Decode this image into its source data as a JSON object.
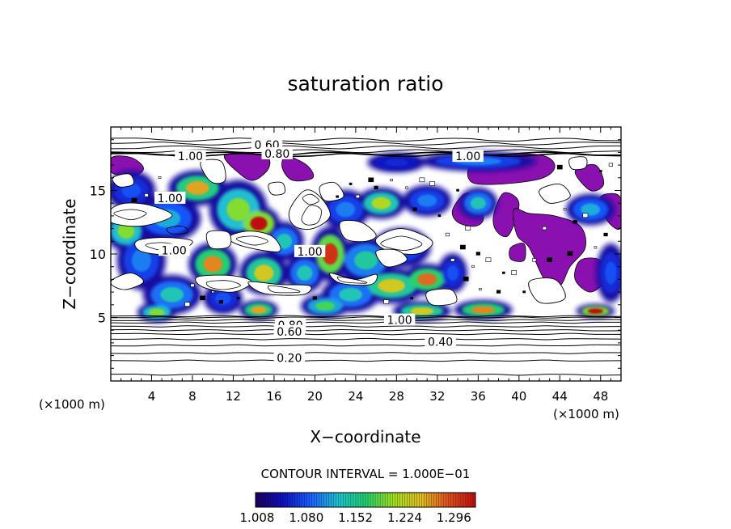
{
  "chart_data": {
    "type": "heatmap",
    "title": "saturation ratio",
    "xlabel": "X−coordinate",
    "ylabel": "Z−coordinate",
    "x_unit_label": "(×1000 m)",
    "y_unit_label": "(×1000 m)",
    "xlim": [
      0,
      50
    ],
    "ylim": [
      0,
      20
    ],
    "x_ticks": [
      4,
      8,
      12,
      16,
      20,
      24,
      28,
      32,
      36,
      40,
      44,
      48
    ],
    "y_ticks": [
      5,
      10,
      15
    ],
    "contour_interval_text": "CONTOUR INTERVAL = 1.000E−01",
    "colorbar": {
      "range": [
        1.008,
        1.33
      ],
      "tick_values": [
        1.008,
        1.08,
        1.152,
        1.224,
        1.296
      ],
      "tick_labels": [
        "1.008",
        "1.080",
        "1.152",
        "1.224",
        "1.296"
      ],
      "colors": [
        "#1e0060",
        "#1010c0",
        "#1a60ff",
        "#20c0d0",
        "#20d070",
        "#a0e020",
        "#e0c020",
        "#e05020",
        "#c01010"
      ]
    },
    "saturated_color": "#8a10b0",
    "contour_labels": [
      {
        "text": "0.60",
        "x": 15.3,
        "z": 18.6
      },
      {
        "text": "1.00",
        "x": 7.8,
        "z": 17.7
      },
      {
        "text": "0.80",
        "x": 16.3,
        "z": 17.9
      },
      {
        "text": "1.00",
        "x": 35.0,
        "z": 17.7
      },
      {
        "text": "1.00",
        "x": 5.8,
        "z": 14.4
      },
      {
        "text": "1.00",
        "x": 6.2,
        "z": 10.3
      },
      {
        "text": "1.00",
        "x": 19.5,
        "z": 10.2
      },
      {
        "text": "1.00",
        "x": 28.3,
        "z": 4.8
      },
      {
        "text": "0.80",
        "x": 17.6,
        "z": 4.4
      },
      {
        "text": "0.60",
        "x": 17.5,
        "z": 3.9
      },
      {
        "text": "0.40",
        "x": 32.3,
        "z": 3.1
      },
      {
        "text": "0.20",
        "x": 17.5,
        "z": 1.8
      }
    ],
    "stratified_contours_z": [
      0.5,
      1.6,
      2.2,
      2.8,
      3.3,
      3.7,
      4.0,
      4.3,
      4.6,
      4.8,
      5.0,
      5.1
    ],
    "upper_contours_z": [
      17.8,
      17.9,
      18.1,
      18.4,
      18.7,
      19.0
    ],
    "moist_cells": [
      {
        "x": 8.5,
        "z": 15.2,
        "sx": 3.0,
        "sz": 0.9,
        "v": 1.26
      },
      {
        "x": 12.5,
        "z": 13.5,
        "sx": 3.0,
        "sz": 1.5,
        "v": 1.2
      },
      {
        "x": 14.5,
        "z": 12.4,
        "sx": 2.2,
        "sz": 0.9,
        "v": 1.33
      },
      {
        "x": 5.5,
        "z": 12.8,
        "sx": 3.5,
        "sz": 1.2,
        "v": 1.12
      },
      {
        "x": 2.0,
        "z": 15.0,
        "sx": 2.5,
        "sz": 1.0,
        "v": 1.08
      },
      {
        "x": 1.5,
        "z": 11.8,
        "sx": 2.2,
        "sz": 1.0,
        "v": 1.2
      },
      {
        "x": 3.0,
        "z": 9.5,
        "sx": 2.5,
        "sz": 1.5,
        "v": 1.1
      },
      {
        "x": 10.0,
        "z": 9.2,
        "sx": 2.5,
        "sz": 1.1,
        "v": 1.27
      },
      {
        "x": 15.0,
        "z": 8.5,
        "sx": 2.5,
        "sz": 1.1,
        "v": 1.24
      },
      {
        "x": 17.0,
        "z": 11.0,
        "sx": 2.0,
        "sz": 1.0,
        "v": 1.14
      },
      {
        "x": 21.5,
        "z": 10.0,
        "sx": 2.0,
        "sz": 1.4,
        "v": 1.31
      },
      {
        "x": 25.0,
        "z": 9.5,
        "sx": 3.0,
        "sz": 1.2,
        "v": 1.15
      },
      {
        "x": 27.5,
        "z": 7.5,
        "sx": 3.5,
        "sz": 0.9,
        "v": 1.24
      },
      {
        "x": 31.0,
        "z": 8.0,
        "sx": 2.5,
        "sz": 0.8,
        "v": 1.28
      },
      {
        "x": 28.5,
        "z": 10.5,
        "sx": 3.0,
        "sz": 1.0,
        "v": 1.1
      },
      {
        "x": 19.0,
        "z": 8.5,
        "sx": 2.0,
        "sz": 1.0,
        "v": 1.14
      },
      {
        "x": 23.5,
        "z": 6.8,
        "sx": 3.0,
        "sz": 0.9,
        "v": 1.14
      },
      {
        "x": 6.0,
        "z": 6.8,
        "sx": 3.0,
        "sz": 1.0,
        "v": 1.14
      },
      {
        "x": 4.5,
        "z": 5.4,
        "sx": 2.0,
        "sz": 0.5,
        "v": 1.2
      },
      {
        "x": 14.5,
        "z": 5.6,
        "sx": 2.0,
        "sz": 0.5,
        "v": 1.26
      },
      {
        "x": 21.0,
        "z": 5.9,
        "sx": 2.5,
        "sz": 0.6,
        "v": 1.18
      },
      {
        "x": 30.5,
        "z": 5.5,
        "sx": 3.0,
        "sz": 0.5,
        "v": 1.24
      },
      {
        "x": 36.5,
        "z": 5.6,
        "sx": 3.0,
        "sz": 0.5,
        "v": 1.27
      },
      {
        "x": 47.5,
        "z": 5.5,
        "sx": 2.0,
        "sz": 0.35,
        "v": 1.33
      },
      {
        "x": 26.5,
        "z": 14.0,
        "sx": 2.5,
        "sz": 0.8,
        "v": 1.22
      },
      {
        "x": 23.0,
        "z": 13.5,
        "sx": 2.5,
        "sz": 1.0,
        "v": 1.1
      },
      {
        "x": 31.0,
        "z": 14.2,
        "sx": 2.5,
        "sz": 0.8,
        "v": 1.1
      },
      {
        "x": 36.0,
        "z": 14.0,
        "sx": 2.0,
        "sz": 0.8,
        "v": 1.14
      },
      {
        "x": 47.0,
        "z": 13.5,
        "sx": 2.5,
        "sz": 0.8,
        "v": 1.12
      },
      {
        "x": 36.0,
        "z": 17.3,
        "sx": 6.0,
        "sz": 0.5,
        "v": 1.1
      },
      {
        "x": 28.0,
        "z": 17.2,
        "sx": 3.0,
        "sz": 0.5,
        "v": 1.06
      },
      {
        "x": 33.5,
        "z": 8.5,
        "sx": 1.5,
        "sz": 1.0,
        "v": 1.08
      },
      {
        "x": 49.0,
        "z": 8.5,
        "sx": 1.5,
        "sz": 1.5,
        "v": 1.08
      },
      {
        "x": 11.0,
        "z": 6.5,
        "sx": 2.0,
        "sz": 0.8,
        "v": 1.08
      }
    ],
    "saturated_regions": [
      [
        [
          0.1,
          17.6
        ],
        [
          2.0,
          17.6
        ],
        [
          3.2,
          16.8
        ],
        [
          2.4,
          16.2
        ],
        [
          0.1,
          16.4
        ]
      ],
      [
        [
          11.2,
          17.8
        ],
        [
          12.5,
          16.4
        ],
        [
          14.0,
          15.8
        ],
        [
          15.5,
          16.8
        ],
        [
          15.0,
          17.8
        ]
      ],
      [
        [
          17.2,
          17.7
        ],
        [
          19.2,
          17.0
        ],
        [
          19.8,
          16.0
        ],
        [
          17.8,
          15.8
        ],
        [
          16.8,
          16.8
        ]
      ],
      [
        [
          35.5,
          15.6
        ],
        [
          41.5,
          15.8
        ],
        [
          43.5,
          16.8
        ],
        [
          42.0,
          17.8
        ],
        [
          36.0,
          17.6
        ]
      ],
      [
        [
          33.5,
          13.5
        ],
        [
          35.0,
          14.8
        ],
        [
          36.5,
          13.0
        ],
        [
          35.8,
          12.2
        ],
        [
          34.0,
          12.5
        ]
      ],
      [
        [
          37.5,
          13.0
        ],
        [
          38.5,
          14.8
        ],
        [
          40.0,
          14.0
        ],
        [
          39.0,
          11.5
        ],
        [
          37.8,
          11.8
        ]
      ],
      [
        [
          39.5,
          13.5
        ],
        [
          41.0,
          13.2
        ],
        [
          43.5,
          13.0
        ],
        [
          46.0,
          12.2
        ],
        [
          46.5,
          10.5
        ],
        [
          45.0,
          9.0
        ],
        [
          44.0,
          7.5
        ],
        [
          42.5,
          8.0
        ],
        [
          41.0,
          10.5
        ],
        [
          39.8,
          11.5
        ]
      ],
      [
        [
          45.5,
          16.5
        ],
        [
          47.0,
          15.0
        ],
        [
          48.3,
          15.5
        ],
        [
          47.5,
          17.0
        ]
      ],
      [
        [
          48.0,
          14.5
        ],
        [
          49.9,
          14.5
        ],
        [
          49.9,
          12.0
        ],
        [
          48.5,
          12.8
        ]
      ],
      [
        [
          39.2,
          10.5
        ],
        [
          40.5,
          10.8
        ],
        [
          40.5,
          9.5
        ],
        [
          39.2,
          9.6
        ]
      ],
      [
        [
          46.0,
          9.5
        ],
        [
          48.0,
          9.5
        ],
        [
          48.5,
          8.0
        ],
        [
          47.0,
          7.0
        ],
        [
          45.5,
          8.0
        ]
      ]
    ],
    "cloud_free_regions": [
      [
        [
          17.5,
          13.4
        ],
        [
          19.0,
          15.0
        ],
        [
          20.5,
          14.5
        ],
        [
          21.5,
          13.0
        ],
        [
          19.8,
          12.0
        ],
        [
          18.0,
          12.2
        ]
      ],
      [
        [
          22.5,
          12.5
        ],
        [
          24.5,
          12.5
        ],
        [
          26.0,
          11.5
        ],
        [
          25.0,
          11.0
        ],
        [
          23.0,
          11.2
        ]
      ],
      [
        [
          26.0,
          11.2
        ],
        [
          28.5,
          12.0
        ],
        [
          31.5,
          11.0
        ],
        [
          30.0,
          10.0
        ],
        [
          27.0,
          10.3
        ]
      ],
      [
        [
          11.5,
          11.3
        ],
        [
          13.5,
          11.8
        ],
        [
          15.8,
          11.4
        ],
        [
          16.5,
          10.2
        ],
        [
          13.0,
          10.6
        ]
      ],
      [
        [
          0.0,
          13.5
        ],
        [
          1.5,
          14.0
        ],
        [
          4.0,
          13.8
        ],
        [
          6.0,
          13.0
        ],
        [
          3.0,
          12.2
        ],
        [
          0.0,
          12.5
        ]
      ],
      [
        [
          8.8,
          17.2
        ],
        [
          10.8,
          17.3
        ],
        [
          11.2,
          15.8
        ],
        [
          9.8,
          15.7
        ]
      ],
      [
        [
          9.5,
          11.7
        ],
        [
          11.5,
          11.7
        ],
        [
          11.6,
          10.6
        ],
        [
          9.8,
          10.5
        ]
      ],
      [
        [
          2.5,
          11.0
        ],
        [
          5.0,
          11.3
        ],
        [
          8.0,
          11.0
        ],
        [
          6.0,
          10.0
        ],
        [
          3.0,
          10.2
        ]
      ],
      [
        [
          20.5,
          15.3
        ],
        [
          22.0,
          15.6
        ],
        [
          22.8,
          14.5
        ],
        [
          21.0,
          14.2
        ]
      ],
      [
        [
          0.2,
          8.0
        ],
        [
          2.0,
          8.5
        ],
        [
          3.2,
          7.8
        ],
        [
          1.5,
          7.2
        ],
        [
          0.2,
          7.5
        ]
      ],
      [
        [
          8.5,
          8.2
        ],
        [
          11.8,
          8.3
        ],
        [
          13.8,
          7.8
        ],
        [
          12.0,
          7.0
        ],
        [
          9.0,
          7.4
        ]
      ],
      [
        [
          13.5,
          7.8
        ],
        [
          16.5,
          7.6
        ],
        [
          19.5,
          7.5
        ],
        [
          18.8,
          6.8
        ],
        [
          15.0,
          6.9
        ]
      ],
      [
        [
          21.5,
          8.5
        ],
        [
          24.0,
          8.0
        ],
        [
          26.0,
          8.4
        ],
        [
          25.5,
          7.6
        ],
        [
          22.5,
          7.7
        ]
      ],
      [
        [
          31.0,
          7.0
        ],
        [
          33.3,
          7.2
        ],
        [
          33.8,
          6.2
        ],
        [
          31.5,
          6.0
        ]
      ],
      [
        [
          26.0,
          10.2
        ],
        [
          28.0,
          10.3
        ],
        [
          29.0,
          9.5
        ],
        [
          27.0,
          9.0
        ]
      ],
      [
        [
          42.0,
          15.0
        ],
        [
          44.0,
          15.5
        ],
        [
          45.0,
          14.5
        ],
        [
          43.0,
          14.0
        ]
      ],
      [
        [
          41.0,
          7.8
        ],
        [
          43.5,
          8.0
        ],
        [
          44.5,
          6.5
        ],
        [
          42.0,
          6.2
        ]
      ],
      [
        [
          0.2,
          16.0
        ],
        [
          1.8,
          16.3
        ],
        [
          2.2,
          15.5
        ],
        [
          0.8,
          15.3
        ]
      ],
      [
        [
          45.0,
          17.5
        ],
        [
          46.5,
          17.6
        ],
        [
          46.5,
          16.8
        ],
        [
          45.2,
          16.7
        ]
      ],
      [
        [
          15.5,
          15.5
        ],
        [
          16.8,
          15.6
        ],
        [
          17.0,
          14.8
        ],
        [
          15.8,
          14.7
        ]
      ]
    ],
    "dry_contours": [
      [
        [
          18.7,
          12.8
        ],
        [
          19.5,
          13.8
        ],
        [
          20.6,
          13.5
        ],
        [
          20.3,
          12.5
        ],
        [
          19.2,
          12.3
        ]
      ],
      [
        [
          26.5,
          10.9
        ],
        [
          28.5,
          11.4
        ],
        [
          30.5,
          10.8
        ],
        [
          29.0,
          10.3
        ],
        [
          27.2,
          10.5
        ]
      ],
      [
        [
          12.3,
          11.2
        ],
        [
          14.0,
          11.4
        ],
        [
          15.4,
          11.0
        ],
        [
          14.0,
          10.7
        ]
      ],
      [
        [
          3.4,
          10.7
        ],
        [
          5.0,
          10.9
        ],
        [
          6.8,
          10.6
        ],
        [
          5.0,
          10.3
        ]
      ],
      [
        [
          9.5,
          7.8
        ],
        [
          11.5,
          7.9
        ],
        [
          12.7,
          7.5
        ],
        [
          11.0,
          7.2
        ],
        [
          9.7,
          7.4
        ]
      ],
      [
        [
          15.5,
          7.5
        ],
        [
          17.5,
          7.3
        ],
        [
          18.5,
          7.0
        ],
        [
          16.0,
          7.0
        ]
      ],
      [
        [
          22.3,
          8.2
        ],
        [
          24.5,
          7.9
        ],
        [
          25.0,
          7.7
        ],
        [
          22.8,
          7.8
        ]
      ],
      [
        [
          0.3,
          13.2
        ],
        [
          2.0,
          13.5
        ],
        [
          3.5,
          13.2
        ],
        [
          2.0,
          12.7
        ]
      ],
      [
        [
          18.8,
          14.4
        ],
        [
          19.6,
          14.7
        ],
        [
          20.4,
          14.2
        ],
        [
          19.5,
          13.9
        ]
      ],
      [
        [
          5.5,
          12.0
        ],
        [
          7.0,
          12.2
        ],
        [
          7.5,
          11.7
        ],
        [
          6.0,
          11.6
        ]
      ]
    ],
    "scattered_specks": [
      [
        23.5,
        15.5
      ],
      [
        24.2,
        14.5
      ],
      [
        25.5,
        15.8
      ],
      [
        29.0,
        15.2
      ],
      [
        29.8,
        13.5
      ],
      [
        31.5,
        15.5
      ],
      [
        32.2,
        13.0
      ],
      [
        33.0,
        11.5
      ],
      [
        34.5,
        10.5
      ],
      [
        35.5,
        9.0
      ],
      [
        36.0,
        10.0
      ],
      [
        37.0,
        9.5
      ],
      [
        38.5,
        8.5
      ],
      [
        33.5,
        9.5
      ],
      [
        34.8,
        8.0
      ],
      [
        36.2,
        7.2
      ],
      [
        38.0,
        7.0
      ],
      [
        39.5,
        8.5
      ],
      [
        40.5,
        7.0
      ],
      [
        41.5,
        9.5
      ],
      [
        43.0,
        9.5
      ],
      [
        44.5,
        13.5
      ],
      [
        45.5,
        12.5
      ],
      [
        46.5,
        13.0
      ],
      [
        48.0,
        16.5
      ],
      [
        49.0,
        17.0
      ],
      [
        44.0,
        16.8
      ],
      [
        27.5,
        15.8
      ],
      [
        26.0,
        15.2
      ],
      [
        30.5,
        15.8
      ],
      [
        22.2,
        14.5
      ],
      [
        8.0,
        7.5
      ],
      [
        9.0,
        6.5
      ],
      [
        10.0,
        7.0
      ],
      [
        10.8,
        6.2
      ],
      [
        7.5,
        6.0
      ],
      [
        12.5,
        6.5
      ],
      [
        3.5,
        14.6
      ],
      [
        2.3,
        14.2
      ],
      [
        4.8,
        16.0
      ],
      [
        20.0,
        6.5
      ],
      [
        27.0,
        6.2
      ],
      [
        29.5,
        6.5
      ],
      [
        42.5,
        12.0
      ],
      [
        45.0,
        10.0
      ],
      [
        47.5,
        10.5
      ],
      [
        48.5,
        11.5
      ],
      [
        35.0,
        12.0
      ],
      [
        34.0,
        15.0
      ]
    ]
  }
}
